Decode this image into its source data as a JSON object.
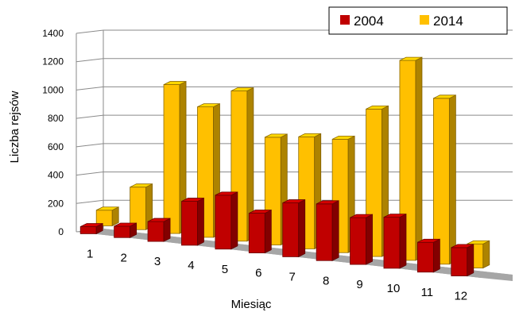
{
  "chart_data": {
    "type": "bar",
    "style": "3d-clustered-column",
    "title": "",
    "xlabel": "Miesiąc",
    "ylabel": "Liczba rejsów",
    "categories": [
      "1",
      "2",
      "3",
      "4",
      "5",
      "6",
      "7",
      "8",
      "9",
      "10",
      "11",
      "12"
    ],
    "series": [
      {
        "name": "2004",
        "color": "#c00000",
        "values": [
          50,
          80,
          140,
          310,
          380,
          280,
          380,
          400,
          330,
          360,
          210,
          200
        ]
      },
      {
        "name": "2014",
        "color": "#ffc000",
        "values": [
          110,
          300,
          1050,
          920,
          1060,
          760,
          790,
          800,
          1040,
          1410,
          1170,
          170
        ]
      }
    ],
    "ylim": [
      0,
      1400
    ],
    "yticks": [
      "0",
      "200",
      "400",
      "600",
      "800",
      "1000",
      "1200",
      "1400"
    ],
    "grid": true,
    "legend": "top-right"
  }
}
